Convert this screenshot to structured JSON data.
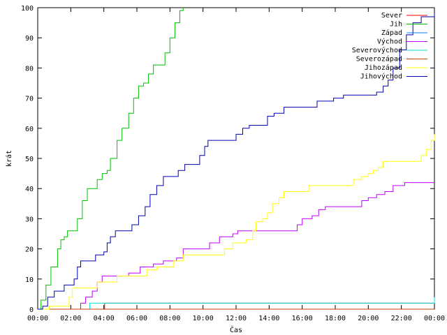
{
  "chart_data": {
    "type": "line",
    "xlabel": "Čas",
    "ylabel": "krát",
    "ylim": [
      0,
      100
    ],
    "xlim_hours": [
      0,
      24
    ],
    "x_tick_labels": [
      "00:00",
      "02:00",
      "04:00",
      "06:00",
      "08:00",
      "10:00",
      "12:00",
      "14:00",
      "16:00",
      "18:00",
      "20:00",
      "22:00",
      "00:00"
    ],
    "y_tick_labels": [
      "0",
      "10",
      "20",
      "30",
      "40",
      "50",
      "60",
      "70",
      "80",
      "90",
      "100"
    ],
    "grid": false,
    "legend_position": "top-right",
    "series": [
      {
        "name": "Sever",
        "color": "#ff0000",
        "points": [
          [
            0,
            0
          ],
          [
            4.0,
            0
          ],
          [
            4.05,
            2
          ],
          [
            24,
            2
          ]
        ]
      },
      {
        "name": "Jih",
        "color": "#00c000",
        "points": [
          [
            0,
            0
          ],
          [
            0.2,
            3
          ],
          [
            0.5,
            8
          ],
          [
            0.8,
            14
          ],
          [
            1.2,
            20
          ],
          [
            1.4,
            23
          ],
          [
            1.6,
            24
          ],
          [
            1.8,
            26
          ],
          [
            2.2,
            26
          ],
          [
            2.4,
            30
          ],
          [
            2.7,
            36
          ],
          [
            3.0,
            40
          ],
          [
            3.4,
            40
          ],
          [
            3.6,
            43
          ],
          [
            3.9,
            45
          ],
          [
            4.2,
            46
          ],
          [
            4.4,
            50
          ],
          [
            4.8,
            56
          ],
          [
            5.1,
            60
          ],
          [
            5.5,
            65
          ],
          [
            5.8,
            70
          ],
          [
            6.1,
            74
          ],
          [
            6.4,
            75
          ],
          [
            6.7,
            78
          ],
          [
            7.0,
            81
          ],
          [
            7.4,
            81
          ],
          [
            7.7,
            85
          ],
          [
            8.0,
            90
          ],
          [
            8.3,
            95
          ],
          [
            8.6,
            99
          ],
          [
            8.8,
            100
          ]
        ]
      },
      {
        "name": "Západ",
        "color": "#0080ff",
        "points": [
          [
            0,
            0
          ],
          [
            24,
            0
          ]
        ]
      },
      {
        "name": "Východ",
        "color": "#c000ff",
        "points": [
          [
            0,
            0
          ],
          [
            2.5,
            0
          ],
          [
            2.6,
            2
          ],
          [
            2.9,
            4
          ],
          [
            3.3,
            6
          ],
          [
            3.6,
            9
          ],
          [
            3.9,
            11
          ],
          [
            4.8,
            11
          ],
          [
            5.5,
            12
          ],
          [
            6.2,
            14
          ],
          [
            7.0,
            15
          ],
          [
            7.6,
            16
          ],
          [
            8.4,
            17
          ],
          [
            8.8,
            20
          ],
          [
            10.2,
            20
          ],
          [
            10.4,
            22
          ],
          [
            11.0,
            24
          ],
          [
            11.8,
            25
          ],
          [
            12.1,
            26
          ],
          [
            15.5,
            26
          ],
          [
            15.7,
            28
          ],
          [
            16.0,
            30
          ],
          [
            16.6,
            31
          ],
          [
            17.0,
            33
          ],
          [
            17.4,
            34
          ],
          [
            19.4,
            34
          ],
          [
            19.6,
            36
          ],
          [
            20.0,
            37
          ],
          [
            20.5,
            38
          ],
          [
            21.0,
            39
          ],
          [
            21.5,
            41
          ],
          [
            22.2,
            42
          ],
          [
            24,
            42
          ]
        ]
      },
      {
        "name": "Severovýchod",
        "color": "#00e0e0",
        "points": [
          [
            0,
            0
          ],
          [
            3.05,
            0
          ],
          [
            3.15,
            2
          ],
          [
            23.85,
            2
          ],
          [
            24,
            4
          ]
        ]
      },
      {
        "name": "Severozápad",
        "color": "#c04000",
        "points": [
          [
            0,
            0
          ],
          [
            24,
            0
          ]
        ]
      },
      {
        "name": "Jihozápad",
        "color": "#ffff00",
        "points": [
          [
            0,
            0
          ],
          [
            0.7,
            1
          ],
          [
            1.5,
            1
          ],
          [
            1.9,
            4
          ],
          [
            2.1,
            7
          ],
          [
            3.4,
            7
          ],
          [
            3.6,
            9
          ],
          [
            4.5,
            9
          ],
          [
            4.8,
            11
          ],
          [
            6.3,
            11
          ],
          [
            6.6,
            13
          ],
          [
            7.2,
            14
          ],
          [
            8.2,
            16
          ],
          [
            8.8,
            18
          ],
          [
            11.1,
            18
          ],
          [
            11.3,
            20
          ],
          [
            11.8,
            22
          ],
          [
            12.6,
            23
          ],
          [
            13.0,
            26
          ],
          [
            13.2,
            29
          ],
          [
            13.6,
            30
          ],
          [
            13.9,
            32
          ],
          [
            14.2,
            35
          ],
          [
            14.6,
            37
          ],
          [
            14.9,
            39
          ],
          [
            16.2,
            39
          ],
          [
            16.4,
            41
          ],
          [
            18.9,
            41
          ],
          [
            19.1,
            43
          ],
          [
            19.6,
            44
          ],
          [
            20.0,
            45
          ],
          [
            20.3,
            46
          ],
          [
            20.6,
            47
          ],
          [
            20.9,
            49
          ],
          [
            22.9,
            49
          ],
          [
            23.2,
            51
          ],
          [
            23.5,
            53
          ],
          [
            23.8,
            56
          ],
          [
            24,
            58
          ]
        ]
      },
      {
        "name": "Jihovýchod",
        "color": "#0000b0",
        "points": [
          [
            0,
            0
          ],
          [
            0.3,
            1
          ],
          [
            0.6,
            4
          ],
          [
            1.0,
            6
          ],
          [
            1.6,
            8
          ],
          [
            2.2,
            10
          ],
          [
            2.4,
            14
          ],
          [
            2.6,
            16
          ],
          [
            3.3,
            16
          ],
          [
            3.5,
            18
          ],
          [
            4.0,
            19
          ],
          [
            4.2,
            22
          ],
          [
            4.4,
            24
          ],
          [
            4.7,
            26
          ],
          [
            5.4,
            26
          ],
          [
            5.7,
            28
          ],
          [
            6.1,
            31
          ],
          [
            6.5,
            34
          ],
          [
            6.8,
            38
          ],
          [
            7.2,
            41
          ],
          [
            7.6,
            44
          ],
          [
            8.2,
            44
          ],
          [
            8.5,
            46
          ],
          [
            8.9,
            48
          ],
          [
            9.5,
            48
          ],
          [
            9.8,
            51
          ],
          [
            10.1,
            54
          ],
          [
            10.3,
            56
          ],
          [
            11.7,
            56
          ],
          [
            12.0,
            58
          ],
          [
            12.4,
            60
          ],
          [
            12.8,
            61
          ],
          [
            13.6,
            61
          ],
          [
            13.9,
            64
          ],
          [
            14.3,
            65
          ],
          [
            14.9,
            67
          ],
          [
            16.5,
            67
          ],
          [
            16.9,
            69
          ],
          [
            17.6,
            69
          ],
          [
            17.9,
            70
          ],
          [
            18.5,
            71
          ],
          [
            20.1,
            71
          ],
          [
            20.5,
            72
          ],
          [
            20.9,
            74
          ],
          [
            21.2,
            76
          ],
          [
            21.5,
            80
          ],
          [
            21.9,
            86
          ],
          [
            22.3,
            91
          ],
          [
            22.7,
            95
          ],
          [
            23.2,
            97
          ],
          [
            24,
            98
          ]
        ]
      }
    ]
  }
}
